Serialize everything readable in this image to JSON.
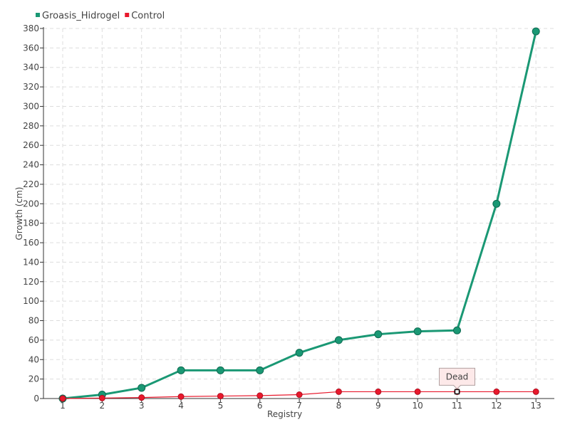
{
  "chart_data": {
    "type": "line",
    "title": "",
    "xlabel": "Registry",
    "ylabel": "Growth (cm)",
    "categories": [
      "1",
      "2",
      "3",
      "4",
      "5",
      "6",
      "7",
      "8",
      "9",
      "10",
      "11",
      "12",
      "13"
    ],
    "ylim": [
      0,
      380
    ],
    "ytick_step": 20,
    "grid": true,
    "legend_position": "top-left",
    "series": [
      {
        "name": "Groasis_Hidrogel",
        "color": "#1a9874",
        "values": [
          0,
          4,
          11,
          29,
          29,
          29,
          47,
          60,
          66,
          69,
          70,
          200,
          377
        ]
      },
      {
        "name": "Control",
        "color": "#e8192c",
        "values": [
          0,
          0.5,
          1,
          2,
          2.5,
          3,
          4,
          7,
          7,
          7,
          7,
          7,
          7
        ]
      }
    ],
    "annotations": [
      {
        "text": "Dead",
        "series": 1,
        "category": "11"
      }
    ]
  }
}
